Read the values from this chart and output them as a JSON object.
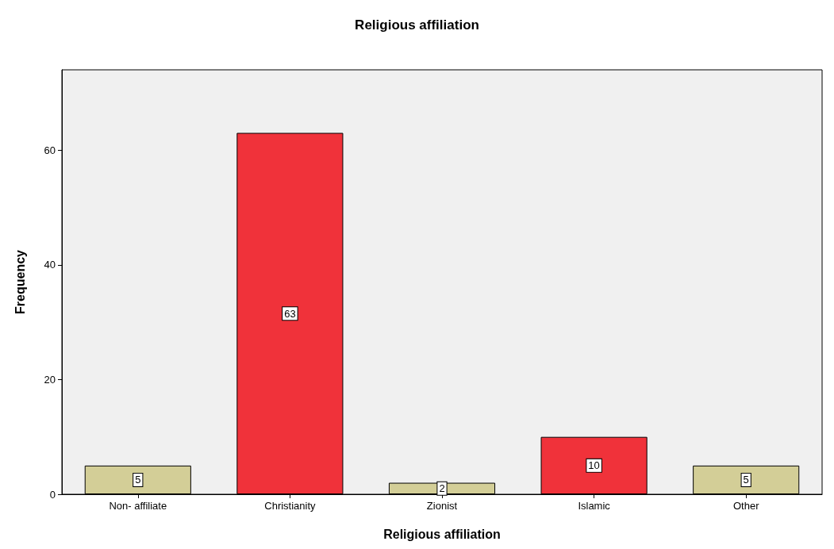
{
  "chart_data": {
    "type": "bar",
    "title": "Religious affiliation",
    "xlabel": "Religious affiliation",
    "ylabel": "Frequency",
    "categories": [
      "Non- affiliate",
      "Christianity",
      "Zionist",
      "Islamic",
      "Other"
    ],
    "values": [
      5,
      63,
      2,
      10,
      5
    ],
    "colors": [
      "#d3ce97",
      "#f0323a",
      "#d3ce97",
      "#f0323a",
      "#d3ce97"
    ],
    "ylim": [
      0,
      74
    ],
    "yticks": [
      0,
      20,
      40,
      60
    ],
    "grid": false,
    "data_labels": true
  }
}
